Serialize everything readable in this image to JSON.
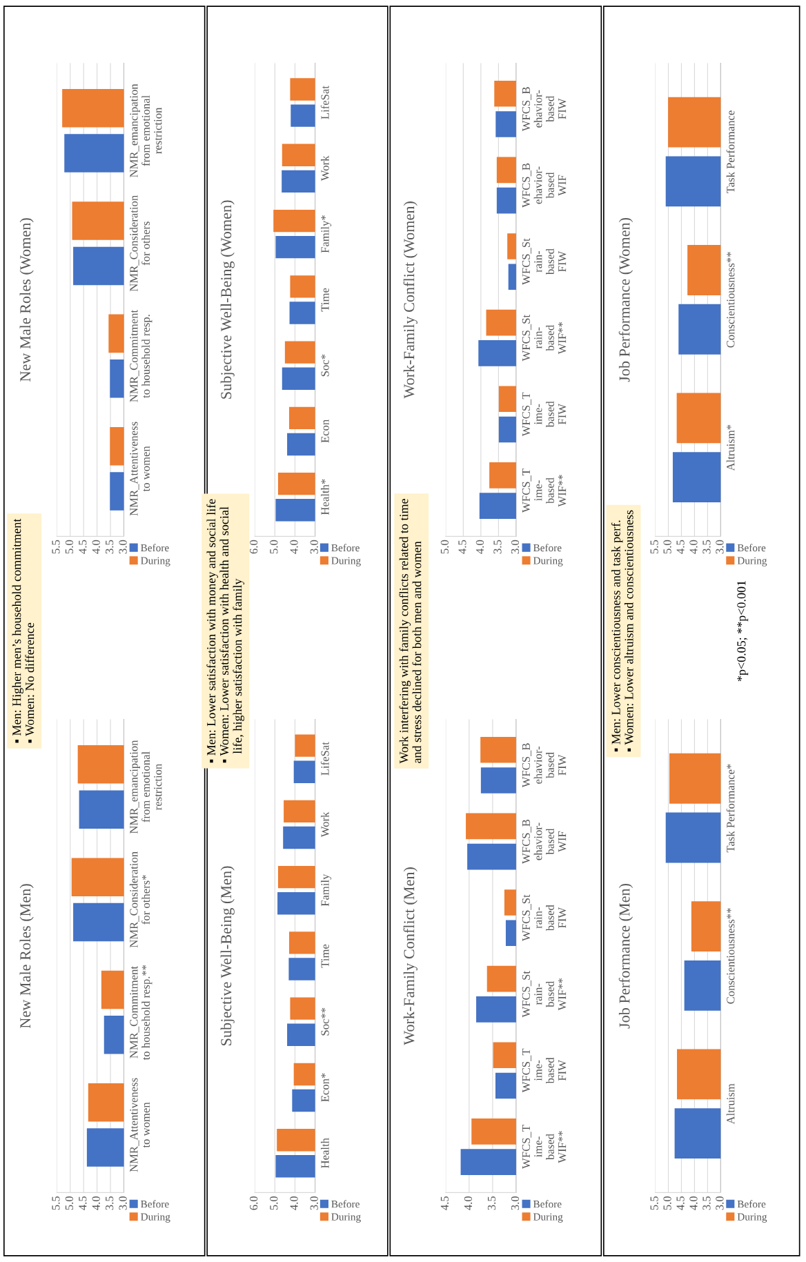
{
  "chart_data": [
    {
      "type": "bar",
      "orientation": "horizontal",
      "title": "New Male Roles (Men)",
      "categories": [
        "NMR_emancipation\nfrom emotional\nrestriction",
        "NMR_Consideration\nfor others*",
        "NMR_Commitment\nto household resp.**",
        "NMR_Attentiveness\nto women"
      ],
      "series": [
        {
          "name": "Before",
          "color": "#4472c4",
          "values": [
            4.67,
            4.89,
            3.74,
            4.38
          ]
        },
        {
          "name": "During",
          "color": "#ed7d31",
          "values": [
            4.72,
            4.95,
            3.84,
            4.33
          ]
        }
      ],
      "xlim": [
        5.5,
        3.0
      ],
      "xticks": [
        {
          "value": 5.5,
          "label": "5.5"
        },
        {
          "value": 5.0,
          "label": "5.0"
        },
        {
          "value": 4.5,
          "label": "4.5"
        },
        {
          "value": 4.0,
          "label": "4.0"
        },
        {
          "value": 3.5,
          "label": "3.5"
        },
        {
          "value": 3.0,
          "label": "3.0"
        }
      ],
      "grid": "x",
      "legend": "right",
      "annotations": [
        "▪ Men: Higher men’s household commitment\n▪ Women: No difference"
      ]
    },
    {
      "type": "bar",
      "orientation": "horizontal",
      "title": "New Male Roles (Women)",
      "categories": [
        "NMR_emancipation\nfrom emotional\nrestriction",
        "NMR_Consideration\nfor others",
        "NMR_Commitment\nto household resp.",
        "NMR_Attentiveness\nto women"
      ],
      "series": [
        {
          "name": "Before",
          "color": "#4472c4",
          "values": [
            5.22,
            4.89,
            3.52,
            3.52
          ]
        },
        {
          "name": "During",
          "color": "#ed7d31",
          "values": [
            5.3,
            4.93,
            3.57,
            3.52
          ]
        }
      ],
      "xlim": [
        5.5,
        3.0
      ],
      "xticks": [
        {
          "value": 5.5,
          "label": "5.5"
        },
        {
          "value": 5.0,
          "label": "5.0"
        },
        {
          "value": 4.5,
          "label": "4.5"
        },
        {
          "value": 4.0,
          "label": "4.0"
        },
        {
          "value": 3.5,
          "label": "3.5"
        },
        {
          "value": 3.0,
          "label": "3.0"
        }
      ],
      "grid": "x",
      "legend": "right"
    },
    {
      "type": "bar",
      "orientation": "horizontal",
      "title": "Subjective Well-Being (Men)",
      "categories": [
        "LifeSat",
        "Work",
        "Family",
        "Time",
        "Soc**",
        "Econ*",
        "Health"
      ],
      "series": [
        {
          "name": "Before",
          "color": "#4472c4",
          "values": [
            4.06,
            4.59,
            4.87,
            4.31,
            4.39,
            4.14,
            4.96
          ]
        },
        {
          "name": "During",
          "color": "#ed7d31",
          "values": [
            4.0,
            4.56,
            4.84,
            4.29,
            4.24,
            4.06,
            4.9
          ]
        }
      ],
      "xlim": [
        6.0,
        3.0
      ],
      "xticks": [
        {
          "value": 6.0,
          "label": "6.0"
        },
        {
          "value": 5.0,
          "label": "5.0"
        },
        {
          "value": 4.0,
          "label": "4.0"
        },
        {
          "value": 3.0,
          "label": "3.0"
        }
      ],
      "grid": "x",
      "legend": "right",
      "annotations": [
        "▪ Men: Lower satisfaction with money and social life\n▪ Women: Lower satisfaction with health and social\n   life, higher satisfaction with family"
      ]
    },
    {
      "type": "bar",
      "orientation": "horizontal",
      "title": "Subjective Well-Being (Women)",
      "categories": [
        "LifeSat",
        "Work",
        "Family*",
        "Time",
        "Soc*",
        "Econ",
        "Health*"
      ],
      "series": [
        {
          "name": "Before",
          "color": "#4472c4",
          "values": [
            4.21,
            4.66,
            4.96,
            4.27,
            4.64,
            4.39,
            4.96
          ]
        },
        {
          "name": "During",
          "color": "#ed7d31",
          "values": [
            4.24,
            4.64,
            5.07,
            4.24,
            4.5,
            4.29,
            4.84
          ]
        }
      ],
      "xlim": [
        6.0,
        3.0
      ],
      "xticks": [
        {
          "value": 6.0,
          "label": "6.0"
        },
        {
          "value": 5.0,
          "label": "5.0"
        },
        {
          "value": 4.0,
          "label": "4.0"
        },
        {
          "value": 3.0,
          "label": "3.0"
        }
      ],
      "grid": "x",
      "legend": "right"
    },
    {
      "type": "bar",
      "orientation": "horizontal",
      "title": "Work-Family Conflict (Men)",
      "categories": [
        "WFCS_B\nehavior-\nbased\nFIW",
        "WFCS_B\nehavior-\nbased\nWIF",
        "WFCS_St\nrain-\nbased\nFIW",
        "WFCS_St\nrain-\nbased\nWIF**",
        "WFCS_T\nime-\nbased\nFIW",
        "WFCS_T\nime-\nbased\nWIF**"
      ],
      "series": [
        {
          "name": "Before",
          "color": "#4472c4",
          "values": [
            3.75,
            4.04,
            3.22,
            3.85,
            3.44,
            4.18
          ]
        },
        {
          "name": "During",
          "color": "#ed7d31",
          "values": [
            3.76,
            4.07,
            3.25,
            3.62,
            3.49,
            3.95
          ]
        }
      ],
      "xlim": [
        4.5,
        3.0
      ],
      "xticks": [
        {
          "value": 4.5,
          "label": "4.5"
        },
        {
          "value": 4.0,
          "label": "4.0"
        },
        {
          "value": 3.5,
          "label": "3.5"
        },
        {
          "value": 3.0,
          "label": "3.0"
        }
      ],
      "grid": "x",
      "legend": "right",
      "annotations": [
        "Work interfering with family conflicts related to time\nand stress declined for both men and women"
      ]
    },
    {
      "type": "bar",
      "orientation": "horizontal",
      "title": "Work-Family Conflict (Women)",
      "categories": [
        "WFCS_B\nehavior-\nbased\nFIW",
        "WFCS_B\nehavior-\nbased\nWIF",
        "WFCS_St\nrain-\nbased\nFIW",
        "WFCS_St\nrain-\nbased\nWIF**",
        "WFCS_T\nime-\nbased\nFIW",
        "WFCS_T\nime-\nbased\nWIF**"
      ],
      "series": [
        {
          "name": "Before",
          "color": "#4472c4",
          "values": [
            3.58,
            3.55,
            3.22,
            4.07,
            3.49,
            4.04
          ]
        },
        {
          "name": "During",
          "color": "#ed7d31",
          "values": [
            3.62,
            3.55,
            3.25,
            3.85,
            3.49,
            3.76
          ]
        }
      ],
      "xlim": [
        5.0,
        3.0
      ],
      "xticks": [
        {
          "value": 5.0,
          "label": "5.0"
        },
        {
          "value": 4.5,
          "label": "4.5"
        },
        {
          "value": 4.0,
          "label": "4.0"
        },
        {
          "value": 3.5,
          "label": "3.5"
        },
        {
          "value": 3.0,
          "label": "3.0"
        }
      ],
      "grid": "x",
      "legend": "right"
    },
    {
      "type": "bar",
      "orientation": "horizontal",
      "title": "Job Performance (Men)",
      "categories": [
        "Task Performance*",
        "Conscientiousness**",
        "Altruism"
      ],
      "series": [
        {
          "name": "Before",
          "color": "#4472c4",
          "values": [
            5.1,
            4.39,
            4.76
          ]
        },
        {
          "name": "During",
          "color": "#ed7d31",
          "values": [
            4.96,
            4.12,
            4.67
          ]
        }
      ],
      "xlim": [
        5.5,
        3.0
      ],
      "xticks": [
        {
          "value": 5.5,
          "label": "5.5"
        },
        {
          "value": 5.0,
          "label": "5.0"
        },
        {
          "value": 4.5,
          "label": "4.5"
        },
        {
          "value": 4.0,
          "label": "4.0"
        },
        {
          "value": 3.5,
          "label": "3.5"
        },
        {
          "value": 3.0,
          "label": "3.0"
        }
      ],
      "grid": "x",
      "legend": "right",
      "annotations": [
        "▪ Men: Lower conscientiousness and task perf.\n▪ Women: Lower altruism and conscientiousness"
      ]
    },
    {
      "type": "bar",
      "orientation": "horizontal",
      "title": "Job Performance (Women)",
      "categories": [
        "Task Performance",
        "Conscientiousness**",
        "Altruism*"
      ],
      "series": [
        {
          "name": "Before",
          "color": "#4472c4",
          "values": [
            5.1,
            4.61,
            4.83
          ]
        },
        {
          "name": "During",
          "color": "#ed7d31",
          "values": [
            5.01,
            4.27,
            4.68
          ]
        }
      ],
      "xlim": [
        5.5,
        3.0
      ],
      "xticks": [
        {
          "value": 5.5,
          "label": "5.5"
        },
        {
          "value": 5.0,
          "label": "5.0"
        },
        {
          "value": 4.5,
          "label": "4.5"
        },
        {
          "value": 4.0,
          "label": "4.0"
        },
        {
          "value": 3.5,
          "label": "3.5"
        },
        {
          "value": 3.0,
          "label": "3.0"
        }
      ],
      "grid": "x",
      "legend": "right",
      "annotations": [
        "*p<0.05; **p<0.001"
      ]
    }
  ]
}
